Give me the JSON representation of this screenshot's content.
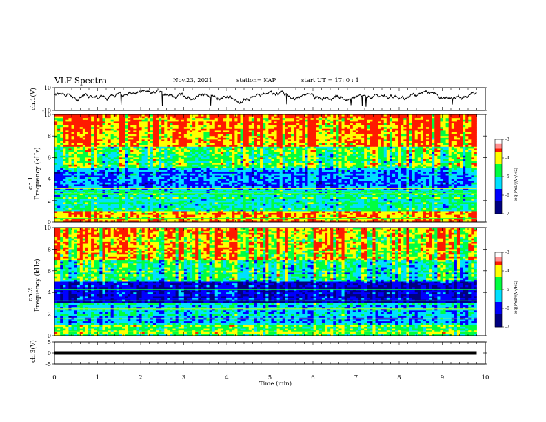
{
  "header": {
    "title": "VLF Spectra",
    "date": "Nov.23, 2021",
    "station": "station= KAP",
    "start_ut": "start  UT =   17: 0  : 1"
  },
  "axes_labels": {
    "ch1_voltage": "ch.1(V)",
    "ch1_spectrum": "ch.1\nFrequency (kHz)",
    "ch2_spectrum": "ch.2\nFrequency (kHz)",
    "ch3_voltage": "ch.3(V)",
    "time": "Time  (min)",
    "colorbar": "log(PSD)(V²/Hz)"
  },
  "colors": {
    "red": "#ff1a00",
    "yellow": "#ffff00",
    "green": "#00ff40",
    "cyan": "#00e0ff",
    "blue": "#0000ff",
    "navy": "#000080"
  },
  "chart_data": [
    {
      "type": "line",
      "name": "ch1-waveform",
      "ylabel": "ch.1(V)",
      "ylim": [
        -10,
        10
      ],
      "yticks": [
        10,
        -10
      ],
      "xlim": [
        0,
        10
      ],
      "x_end": 9.8,
      "trace": {
        "mean": 2.5,
        "range": [
          -4,
          8
        ]
      }
    },
    {
      "type": "heatmap",
      "name": "ch1-spectrogram",
      "ylabel": "ch.1\nFrequency (kHz)",
      "ylim": [
        0,
        10
      ],
      "yticks": [
        0,
        2,
        4,
        6,
        8,
        10
      ],
      "xlim": [
        0,
        10
      ],
      "x_end": 9.8,
      "colorbar": {
        "label": "log(PSD)(V²/Hz)",
        "range": [
          -7,
          -3
        ],
        "ticks": [
          -3,
          -4,
          -5,
          -6,
          -7
        ]
      },
      "bands_kHz": [
        {
          "from": 0,
          "to": 1,
          "level": -3.6
        },
        {
          "from": 1,
          "to": 3,
          "level": -5.0
        },
        {
          "from": 3,
          "to": 5,
          "level": -5.6
        },
        {
          "from": 5,
          "to": 7,
          "level": -4.5
        },
        {
          "from": 7,
          "to": 10,
          "level": -3.6
        }
      ]
    },
    {
      "type": "heatmap",
      "name": "ch2-spectrogram",
      "ylabel": "ch.2\nFrequency (kHz)",
      "ylim": [
        0,
        10
      ],
      "yticks": [
        0,
        2,
        4,
        6,
        8,
        10
      ],
      "xlim": [
        0,
        10
      ],
      "x_end": 9.8,
      "colorbar": {
        "label": "log(PSD)(V²/Hz)",
        "range": [
          -7,
          -3
        ],
        "ticks": [
          -3,
          -4,
          -5,
          -6,
          -7
        ]
      },
      "bands_kHz": [
        {
          "from": 0,
          "to": 1,
          "level": -4.5
        },
        {
          "from": 1,
          "to": 3,
          "level": -5.3
        },
        {
          "from": 3,
          "to": 5,
          "level": -6.2
        },
        {
          "from": 5,
          "to": 7,
          "level": -5.0
        },
        {
          "from": 7,
          "to": 10,
          "level": -4.0
        }
      ]
    },
    {
      "type": "line",
      "name": "ch3-level",
      "ylabel": "ch.3(V)",
      "ylim": [
        -5,
        5
      ],
      "yticks": [
        5,
        0,
        -5
      ],
      "xlim": [
        0,
        10
      ],
      "x_end": 9.8,
      "level": 0
    }
  ],
  "x_axis": {
    "label": "Time  (min)",
    "ticks": [
      "0",
      "1",
      "2",
      "3",
      "4",
      "5",
      "6",
      "7",
      "8",
      "9",
      "10"
    ]
  }
}
